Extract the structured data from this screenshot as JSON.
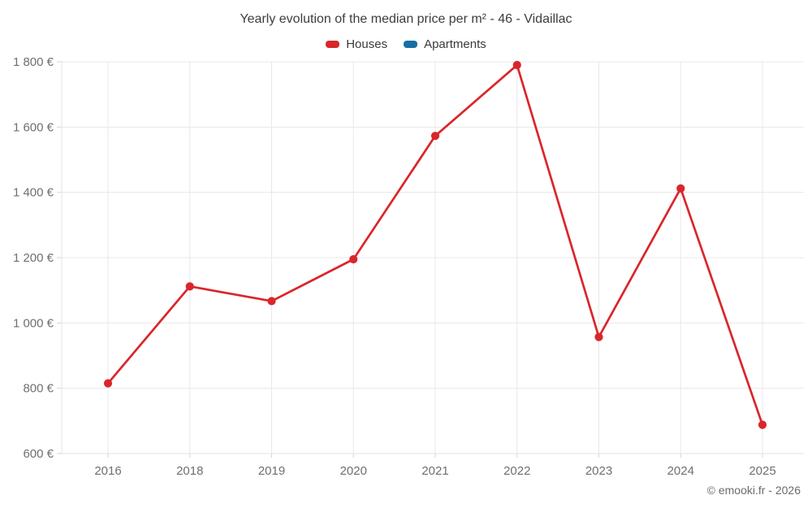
{
  "chart_data": {
    "type": "line",
    "title": "Yearly evolution of the median price per m² - 46 - Vidaillac",
    "categories": [
      "2016",
      "2018",
      "2019",
      "2020",
      "2021",
      "2022",
      "2023",
      "2024",
      "2025"
    ],
    "series": [
      {
        "name": "Houses",
        "color": "#d9262c",
        "values": [
          815,
          1112,
          1067,
          1195,
          1573,
          1790,
          957,
          1412,
          688
        ]
      },
      {
        "name": "Apartments",
        "color": "#1470a4",
        "values": []
      }
    ],
    "xlabel": "",
    "ylabel": "",
    "ylim": [
      600,
      1800
    ],
    "ytick_step": 200,
    "ytick_labels": [
      "600 €",
      "800 €",
      "1 000 €",
      "1 200 €",
      "1 400 €",
      "1 600 €",
      "1 800 €"
    ],
    "grid": true,
    "legend_position": "top",
    "marker": "circle"
  },
  "footer": {
    "credit": "© emooki.fr - 2026"
  }
}
